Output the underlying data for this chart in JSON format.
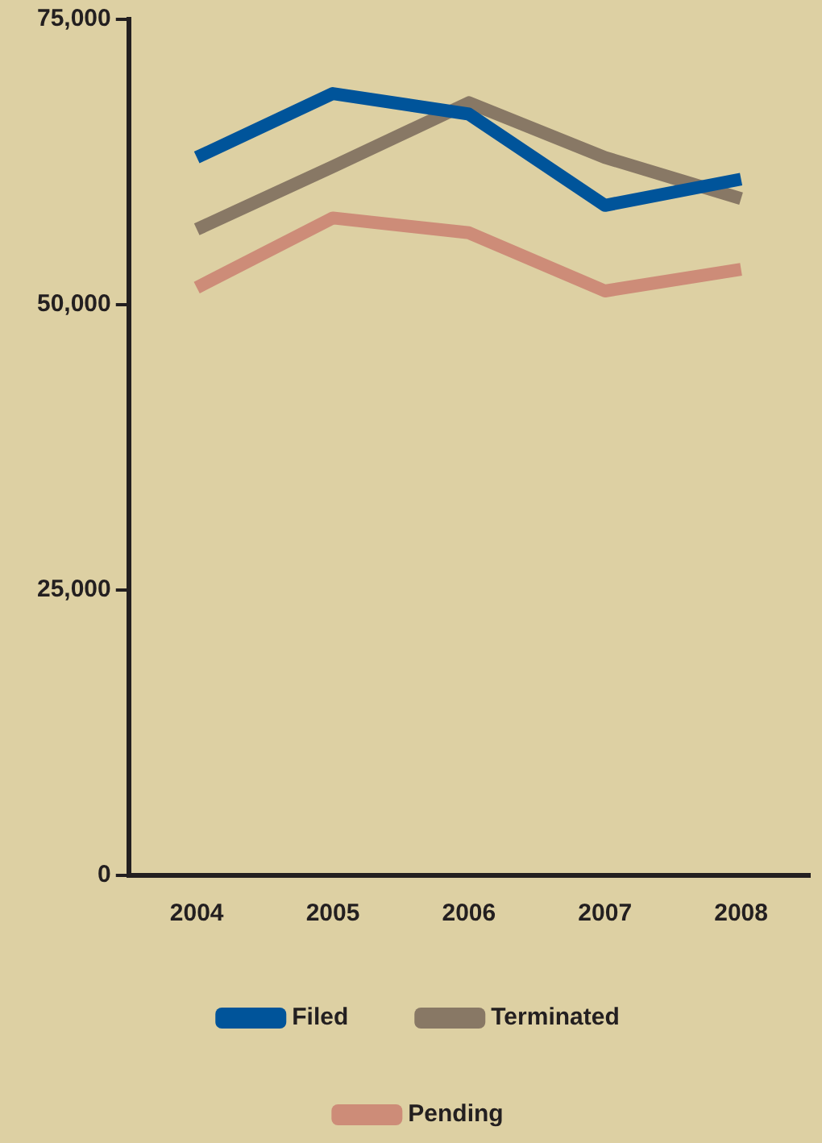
{
  "chart_data": {
    "type": "line",
    "categories": [
      "2004",
      "2005",
      "2006",
      "2007",
      "2008"
    ],
    "series": [
      {
        "name": "Filed",
        "color": "#00549a",
        "values": [
          62900,
          68500,
          66700,
          58700,
          61000
        ]
      },
      {
        "name": "Terminated",
        "color": "#887865",
        "values": [
          56600,
          62100,
          67700,
          62900,
          59300
        ]
      },
      {
        "name": "Pending",
        "color": "#cd8c78",
        "values": [
          51500,
          57600,
          56300,
          51200,
          53100
        ]
      }
    ],
    "ylim": [
      0,
      75000
    ],
    "yticks": [
      {
        "value": 0,
        "label": "0"
      },
      {
        "value": 25000,
        "label": "25,000"
      },
      {
        "value": 50000,
        "label": "50,000"
      },
      {
        "value": 75000,
        "label": "75,000"
      }
    ],
    "grid": false,
    "legend": "bottom",
    "marker": "none",
    "line_style": "solid"
  }
}
